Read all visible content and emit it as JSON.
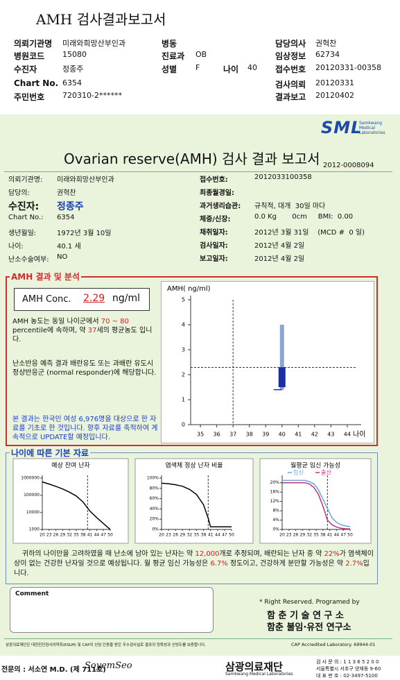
{
  "header": {
    "title": "AMH 검사결과보고서",
    "fields": [
      {
        "label": "의뢰기관명",
        "value": "미래와희망산부인과"
      },
      {
        "label": "병원코드",
        "value": "15080"
      },
      {
        "label": "수진자",
        "value": "정종주"
      },
      {
        "label": "Chart No.",
        "value": "6354"
      },
      {
        "label": "주민번호",
        "value": "720310-2******"
      },
      {
        "label": "병동"
      },
      {
        "label": "진료과",
        "value": "OB"
      },
      {
        "label": "성별",
        "value": "F"
      },
      {
        "label": "나이",
        "value": "40"
      },
      {
        "label": "담당의사",
        "value": "권혁찬"
      },
      {
        "label": "임상정보",
        "value": "62734"
      },
      {
        "label": "접수번호",
        "value": "20120331-00358"
      },
      {
        "label": "검사의뢰",
        "value": "20120331"
      },
      {
        "label": "결과보고",
        "value": "20120402"
      }
    ]
  },
  "report": {
    "logo": "SML",
    "logo_sub": "Samkwang Medical Laboratories",
    "title": "Ovarian reserve(AMH) 검사 결과 보고서",
    "number": "2012-0008094",
    "left_fields": [
      {
        "label": "의뢰기관명:",
        "value": "미래와희망산부인과"
      },
      {
        "label": "담당의:",
        "value": "권혁찬"
      },
      {
        "label": "수진자:",
        "value": "정종주"
      },
      {
        "label": "Chart No.:",
        "value": "6354"
      },
      {
        "label": "생년월일:",
        "value": "1972년 3월 10일"
      },
      {
        "label": "나이:",
        "value": "40.1 세"
      },
      {
        "label": "난소수술여부:",
        "value": "NO"
      }
    ],
    "right_fields": [
      {
        "label": "접수번호:",
        "value": "2012033100358"
      },
      {
        "label": "최종월경일:"
      },
      {
        "label": "과거생리습관:",
        "value": "규칙적, 대개  30일 마다"
      },
      {
        "label": "체중/신장:",
        "value": "0.0 Kg       0cm     BMI:  0.00"
      },
      {
        "label": "채취일자:",
        "value": "2012년 3월 31일    (MCD #  0 일)"
      },
      {
        "label": "검사일자:",
        "value": "2012년 4월 2일"
      },
      {
        "label": "보고일자:",
        "value": "2012년 4월 2일"
      }
    ]
  },
  "amh": {
    "section_title": "AMH 결과 및 분석",
    "conc_label": "AMH Conc.",
    "conc_value": 2.29,
    "conc_unit": "ng/ml",
    "text1": [
      "AMH 농도는 동일 나이군에서 ",
      "70 ~ 80",
      " percentile에 속하며, 약 ",
      37,
      "세의 평균농도 입니다."
    ],
    "text2": "난소반응 예측 결과 배란유도 또는 과배란 유도시 정상반응군 (normal responder)에 해당합니다.",
    "text3": "본 결과는 한국인 여성 6,976명을 대상으로 한 자료를 기초로 한 것입니다. 향후 자료를 축적하여 계속적으로 UPDATE할 예정입니다.",
    "chart": {
      "type": "box",
      "y_label": "AMH( ng/ml)",
      "x_label": "나이",
      "xlim": [
        34.4,
        44.6
      ],
      "xticks": [
        35,
        36,
        37,
        38,
        39,
        40,
        41,
        42,
        43,
        44
      ],
      "ylim": [
        0,
        5
      ],
      "yticks": [
        0,
        1,
        2,
        3,
        4,
        5
      ],
      "box": {
        "x": 40,
        "low": 1.4,
        "q1": 1.5,
        "q3": 2.3,
        "high": 4.0,
        "color": "#1a2fa0",
        "range_color": "#8aa6d8"
      }
    }
  },
  "age": {
    "section_title": "나이에 따른 기본 자료",
    "charts": [
      {
        "type": "line",
        "title": "예상 잔여 난자",
        "log": true,
        "xlim": [
          20,
          50
        ],
        "xticks": [
          20,
          23,
          26,
          29,
          32,
          35,
          38,
          41,
          44,
          47,
          50
        ],
        "ylim": [
          1000,
          1000000
        ],
        "yticks": [
          1000,
          10000,
          100000,
          1000000
        ],
        "marker_x": 40,
        "series": [
          {
            "color": "#000000",
            "x": [
              20,
              23,
              26,
              29,
              32,
              35,
              38,
              41,
              44,
              47,
              50
            ],
            "values": [
              600000,
              450000,
              330000,
              230000,
              150000,
              90000,
              40000,
              12000,
              5000,
              2200,
              1000
            ]
          }
        ]
      },
      {
        "type": "line",
        "title": "염색체 정상 난자 비율",
        "log": false,
        "xlim": [
          20,
          50
        ],
        "xticks": [
          20,
          23,
          26,
          29,
          32,
          35,
          38,
          41,
          44,
          47,
          50
        ],
        "ylim": [
          0,
          100
        ],
        "yticks": [
          {
            "value": 0,
            "label": "0%"
          },
          {
            "value": 20,
            "label": "20%"
          },
          {
            "value": 40,
            "label": "40%"
          },
          {
            "value": 60,
            "label": "60%"
          },
          {
            "value": 80,
            "label": "80%"
          },
          {
            "value": 100,
            "label": "100%"
          }
        ],
        "marker_x": 40,
        "series": [
          {
            "color": "#000000",
            "x": [
              20,
              23,
              26,
              29,
              32,
              35,
              38,
              40,
              41,
              44,
              47,
              50
            ],
            "values": [
              90,
              89,
              87,
              84,
              78,
              68,
              48,
              22,
              5,
              5,
              5,
              5
            ]
          }
        ]
      },
      {
        "type": "line",
        "title": "월평균 임신 가능성",
        "log": false,
        "xlim": [
          20,
          50
        ],
        "xticks": [
          20,
          23,
          26,
          29,
          32,
          35,
          38,
          41,
          44,
          47,
          50
        ],
        "ylim": [
          0,
          22
        ],
        "yticks": [
          {
            "value": 0,
            "label": "0%"
          },
          {
            "value": 4,
            "label": "4%"
          },
          {
            "value": 8,
            "label": "8%"
          },
          {
            "value": 12,
            "label": "12%"
          },
          {
            "value": 16,
            "label": "16%"
          },
          {
            "value": 20,
            "label": "20%"
          }
        ],
        "marker_x": 40,
        "series": [
          {
            "name": "임신",
            "color": "#6aa4d8",
            "x": [
              20,
              25,
              30,
              32,
              34,
              36,
              38,
              40,
              42,
              44,
              46,
              48,
              50
            ],
            "values": [
              21,
              21,
              21,
              20.5,
              19.5,
              17,
              13,
              9,
              5,
              3,
              2,
              1.5,
              1.2
            ]
          },
          {
            "name": "출산",
            "color": "#c0307a",
            "x": [
              20,
              25,
              30,
              32,
              34,
              36,
              38,
              40,
              42,
              44,
              46,
              48,
              50
            ],
            "values": [
              20,
              20,
              20,
              19.5,
              18,
              15,
              10,
              4,
              2,
              1,
              0.5,
              0.3,
              0.2
            ]
          }
        ]
      }
    ],
    "summary": [
      "귀하의 나이만을 고려하였을 때 난소에 남아 있는 난자는 약 ",
      "12,000",
      "개로 추정되며, 배란되는 난자 중 약 ",
      "22%",
      "가 염색체이상이 없는 건강한 난자일 것으로 예상됩니다. 월 평균 임신 가능성은 ",
      "6.7%",
      " 정도이고, 건강하게 분만할 가능성은 약 ",
      "2.7%",
      "입니다."
    ]
  },
  "comment_label": "Comment",
  "credit": {
    "line1": "* Right Reserved. Programed by",
    "line2": "함 춘 기 술 연 구 소",
    "line3": "함춘 불임·유전 연구소"
  },
  "footer": {
    "note": "삼광의료재단은 대한진단검사의학회(KSLM) 및 CAP의 신임 인증을 받은 우수검사실로 결과의 정확성과 신빙도를 보증합니다.",
    "cap": "CAP Accredited Laboratory.  69944-01",
    "doctor": "전문의 : 서소연 M.D. (제 711호)",
    "signature": "SoyemSeo",
    "org": "삼광의료재단",
    "org_en": "Samkwang Medical Laboratories",
    "contact": [
      "검 사 문 의 : 1 1 3 6 5 2 0 0",
      "서울특별시 서초구 양재동 9-60",
      "대 표 번 호 : 02-3497-5100"
    ]
  }
}
